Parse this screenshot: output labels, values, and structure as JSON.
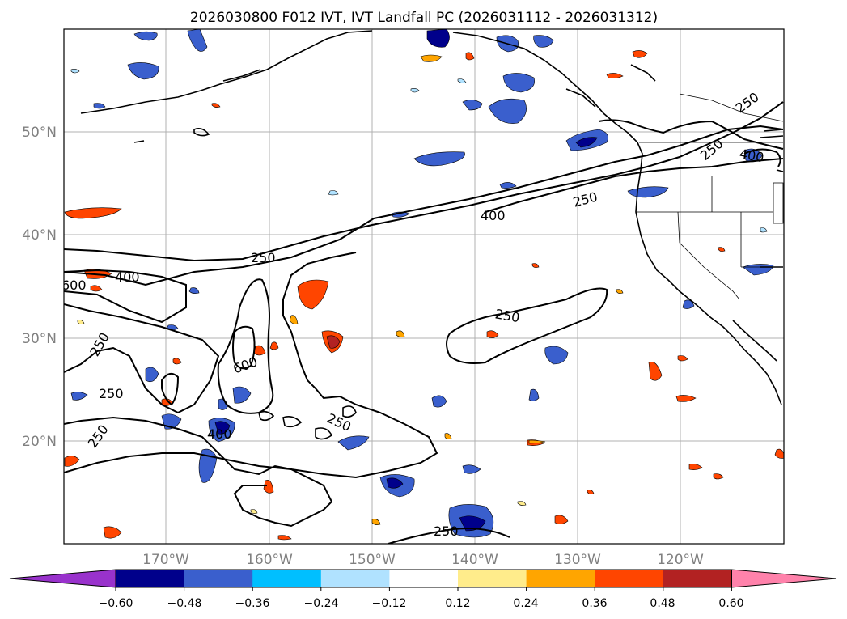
{
  "title": "2026030800 F012 IVT, IVT Landfall PC (2026031112 - 2026031312)",
  "map": {
    "lat_ticks": [
      "50°N",
      "40°N",
      "30°N",
      "20°N"
    ],
    "lon_ticks": [
      "170°W",
      "160°W",
      "150°W",
      "140°W",
      "130°W",
      "120°W"
    ],
    "contour_labels": [
      "250",
      "400",
      "600",
      "250",
      "250",
      "400",
      "250",
      "250",
      "600",
      "400",
      "250",
      "250",
      "250",
      "250",
      "400",
      "250"
    ],
    "contour_levels": [
      250,
      400,
      600
    ],
    "grid": true
  },
  "colorbar": {
    "ticks": [
      "−0.60",
      "−0.48",
      "−0.36",
      "−0.24",
      "−0.12",
      "0.12",
      "0.24",
      "0.36",
      "0.48",
      "0.60"
    ],
    "colors": [
      "#9932cc",
      "#00008b",
      "#3a5fcd",
      "#00bfff",
      "#b0e2ff",
      "#ffffff",
      "#ffec8b",
      "#ffa500",
      "#ff4500",
      "#b22222",
      "#ff82ab"
    ],
    "extend": "both"
  }
}
